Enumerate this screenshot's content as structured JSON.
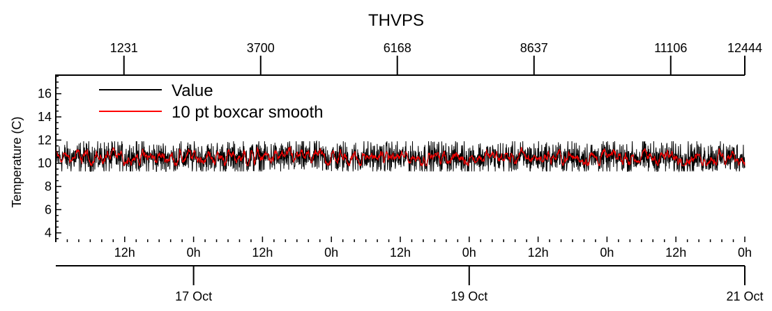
{
  "chart_data": {
    "type": "line",
    "title": "THVPS",
    "ylabel": "Temperature (C)",
    "xlabel": "",
    "ylim": [
      3.2,
      17.6
    ],
    "yticks": [
      4,
      6,
      8,
      10,
      12,
      14,
      16
    ],
    "top_axis": {
      "range": [
        0,
        12444
      ],
      "ticks": [
        1231,
        3700,
        6168,
        8637,
        11106,
        12444
      ]
    },
    "bottom_axis_hours": {
      "range_hours": [
        0,
        120
      ],
      "ticks": [
        {
          "hours": 12,
          "label": "12h"
        },
        {
          "hours": 24,
          "label": "0h"
        },
        {
          "hours": 36,
          "label": "12h"
        },
        {
          "hours": 48,
          "label": "0h"
        },
        {
          "hours": 60,
          "label": "12h"
        },
        {
          "hours": 72,
          "label": "0h"
        },
        {
          "hours": 84,
          "label": "12h"
        },
        {
          "hours": 96,
          "label": "0h"
        },
        {
          "hours": 108,
          "label": "12h"
        },
        {
          "hours": 120,
          "label": "0h"
        }
      ]
    },
    "bottom_axis_dates": {
      "ticks": [
        {
          "hours": 24,
          "label": "17 Oct"
        },
        {
          "hours": 72,
          "label": "19 Oct"
        },
        {
          "hours": 120,
          "label": "21 Oct"
        }
      ]
    },
    "legend": {
      "placement": "top-left"
    },
    "series": [
      {
        "name": "Value",
        "color": "#000000",
        "mean": 10.5,
        "min": 9.3,
        "max": 11.9
      },
      {
        "name": "10 pt boxcar smooth",
        "color": "#ff0000",
        "mean": 10.5,
        "min": 9.8,
        "max": 11.4
      }
    ]
  }
}
